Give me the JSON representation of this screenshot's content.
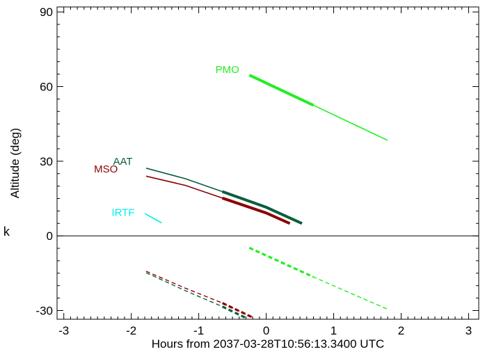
{
  "chart_data": {
    "type": "line",
    "title": "",
    "xlabel": "Hours from 2037-03-28T10:56:13.3400 UTC",
    "ylabel": "Altitude (deg)",
    "xlim": [
      -3.1,
      3.15
    ],
    "ylim": [
      -33.5,
      92
    ],
    "xticks": [
      -3,
      -2,
      -1,
      0,
      1,
      2,
      3
    ],
    "yticks": [
      -30,
      0,
      30,
      60,
      90
    ],
    "xtick_labels": [
      "-3",
      "-2",
      "-1",
      "0",
      "1",
      "2",
      "3"
    ],
    "ytick_labels": [
      "-30",
      "0",
      "30",
      "60",
      "90"
    ],
    "zero_line": 0,
    "side_label": "k",
    "series": [
      {
        "name": "PMO",
        "color": "#22ee22",
        "label_at": [
          -0.4,
          65.5
        ],
        "thin": [
          [
            -0.25,
            64.6
          ],
          [
            0.7,
            52.5
          ],
          [
            1.8,
            38.4
          ]
        ],
        "thick": [
          [
            -0.25,
            64.6
          ],
          [
            0.7,
            52.5
          ]
        ],
        "below": [
          [
            -0.25,
            -4.8
          ],
          [
            0.7,
            -16.5
          ],
          [
            1.8,
            -29.5
          ]
        ],
        "below_thick": [
          [
            -0.25,
            -4.8
          ],
          [
            0.7,
            -16.5
          ]
        ]
      },
      {
        "name": "AAT",
        "color": "#0a5e3c",
        "label_at": [
          -1.98,
          28.5
        ],
        "thin": [
          [
            -1.78,
            27.2
          ],
          [
            -1.2,
            23.0
          ],
          [
            -0.65,
            17.8
          ],
          [
            0.0,
            11.5
          ],
          [
            0.53,
            5.0
          ]
        ],
        "thick": [
          [
            -0.65,
            17.8
          ],
          [
            0.0,
            11.5
          ],
          [
            0.53,
            5.0
          ]
        ],
        "below": [
          [
            -1.78,
            -14.8
          ],
          [
            -1.2,
            -22.0
          ],
          [
            -0.65,
            -28.4
          ],
          [
            -0.3,
            -33.0
          ]
        ],
        "below_thick": [
          [
            -0.65,
            -28.4
          ],
          [
            -0.3,
            -33.0
          ]
        ]
      },
      {
        "name": "MSO",
        "color": "#8b0000",
        "label_at": [
          -2.2,
          25.5
        ],
        "thin": [
          [
            -1.78,
            24.0
          ],
          [
            -1.2,
            20.3
          ],
          [
            -0.65,
            15.2
          ],
          [
            0.0,
            9.2
          ],
          [
            0.35,
            5.0
          ]
        ],
        "thick": [
          [
            -0.65,
            15.2
          ],
          [
            0.0,
            9.2
          ],
          [
            0.35,
            5.0
          ]
        ],
        "below": [
          [
            -1.78,
            -14.2
          ],
          [
            -1.2,
            -21.0
          ],
          [
            -0.65,
            -27.0
          ],
          [
            -0.2,
            -32.8
          ]
        ],
        "below_thick": [
          [
            -0.65,
            -27.0
          ],
          [
            -0.2,
            -32.8
          ]
        ]
      },
      {
        "name": "IRTF",
        "color": "#00eeee",
        "label_at": [
          -1.95,
          8.0
        ],
        "thin": [
          [
            -1.8,
            9.0
          ],
          [
            -1.55,
            5.2
          ]
        ],
        "thick": [],
        "below": [],
        "below_thick": []
      }
    ]
  }
}
